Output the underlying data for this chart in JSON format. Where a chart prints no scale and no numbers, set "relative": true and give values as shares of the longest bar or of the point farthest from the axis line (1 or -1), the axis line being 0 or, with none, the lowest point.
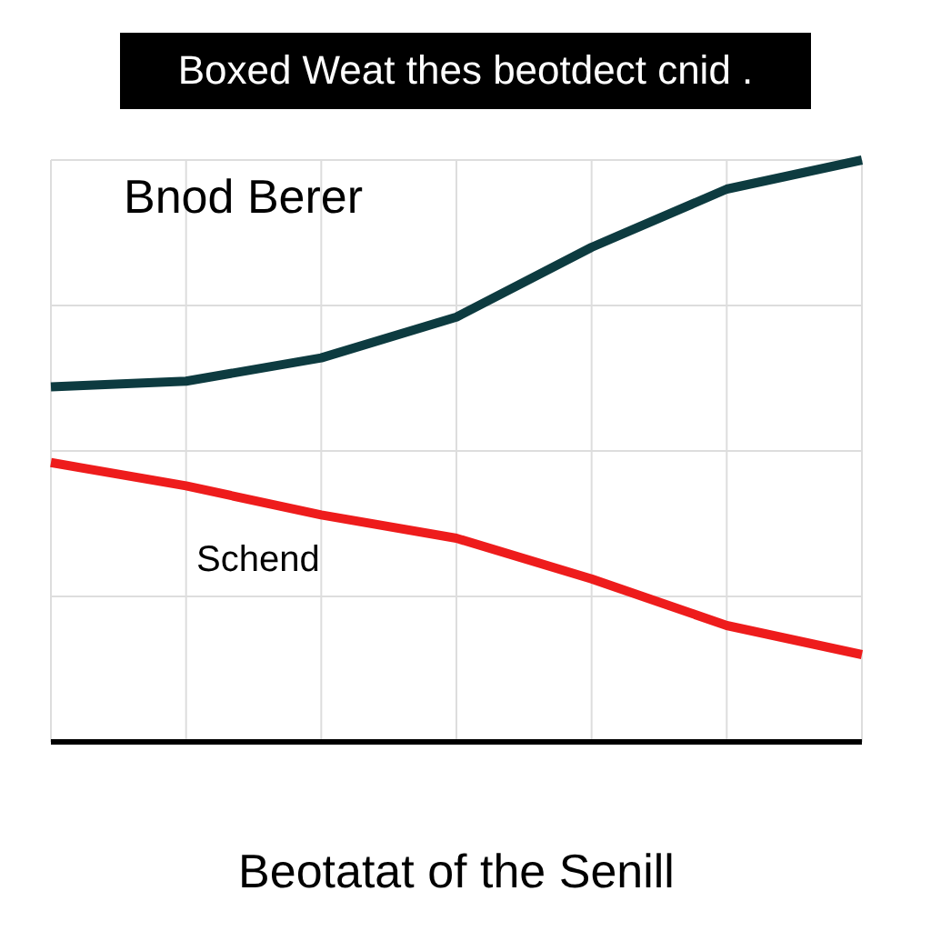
{
  "chart_data": {
    "type": "line",
    "title": "Boxed Weat thes beotdect cnid .",
    "xlabel": "Beotatat of the Senill",
    "relative": true,
    "grid": true,
    "legend": false,
    "marker": "none",
    "line_style": "solid",
    "categories": [
      null,
      null,
      null,
      null,
      null,
      null,
      null
    ],
    "series": [
      {
        "name": "Bnod Berer",
        "color": "#0d3b40",
        "values": [
          0.61,
          0.62,
          0.66,
          0.73,
          0.85,
          0.95,
          1
        ]
      },
      {
        "name": "Schend",
        "color": "#ee1c1c",
        "values": [
          0.48,
          0.44,
          0.39,
          0.35,
          0.28,
          0.2,
          0.15
        ]
      }
    ]
  }
}
